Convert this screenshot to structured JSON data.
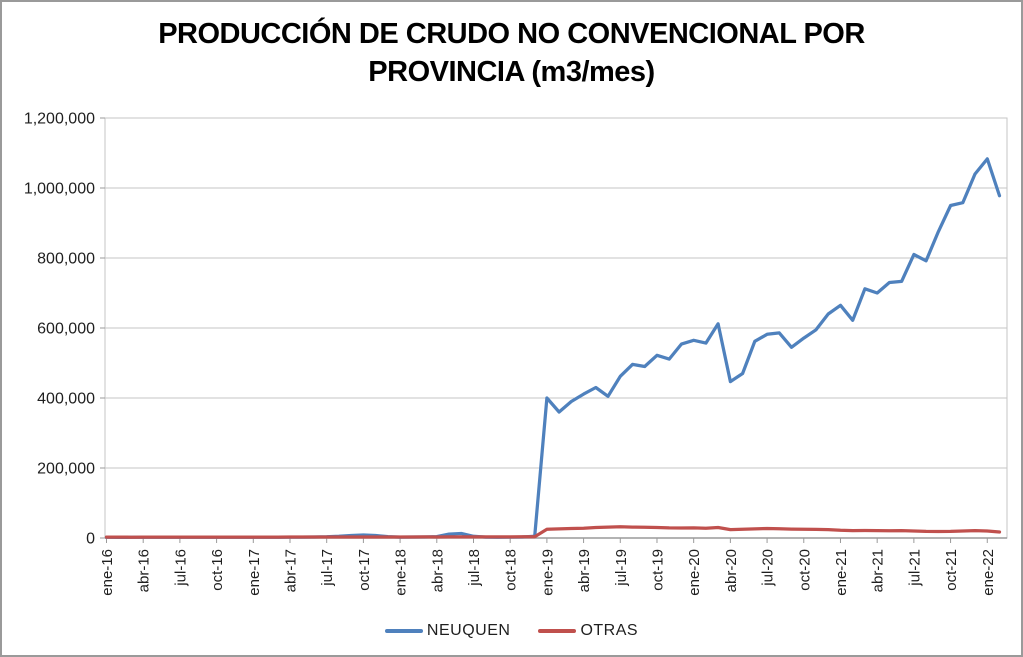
{
  "chart": {
    "title_line1": "PRODUCCIÓN DE CRUDO NO CONVENCIONAL POR",
    "title_line2": "PROVINCIA (m3/mes)",
    "legend": {
      "items": [
        {
          "label": "NEUQUEN",
          "color": "#4F81BD"
        },
        {
          "label": "OTRAS",
          "color": "#C0504D"
        }
      ]
    },
    "colors": {
      "series_neuquen": "#4F81BD",
      "series_otras": "#C0504D",
      "grid": "#C6C6C6",
      "axis": "#9A9A9A",
      "text": "#1F1F1F",
      "border": "#9A9A9A",
      "background": "#FFFFFF"
    }
  },
  "chart_data": {
    "type": "line",
    "title": "PRODUCCIÓN DE CRUDO NO CONVENCIONAL POR PROVINCIA (m3/mes)",
    "xlabel": "",
    "ylabel": "",
    "ylim": [
      0,
      1200000
    ],
    "ytick_step": 200000,
    "y_tick_labels": [
      "0",
      "200,000",
      "400,000",
      "600,000",
      "800,000",
      "1,000,000",
      "1,200,000"
    ],
    "x_tick_every": 3,
    "x_tick_labels": [
      "ene-16",
      "abr-16",
      "jul-16",
      "oct-16",
      "ene-17",
      "abr-17",
      "jul-17",
      "oct-17",
      "ene-18",
      "abr-18",
      "jul-18",
      "oct-18",
      "ene-19",
      "abr-19",
      "jul-19",
      "oct-19",
      "ene-20",
      "abr-20",
      "jul-20",
      "oct-20",
      "ene-21",
      "abr-21",
      "jul-21",
      "oct-21",
      "ene-22"
    ],
    "grid": true,
    "legend_position": "bottom",
    "x": [
      "ene-16",
      "feb-16",
      "mar-16",
      "abr-16",
      "may-16",
      "jun-16",
      "jul-16",
      "ago-16",
      "sep-16",
      "oct-16",
      "nov-16",
      "dic-16",
      "ene-17",
      "feb-17",
      "mar-17",
      "abr-17",
      "may-17",
      "jun-17",
      "jul-17",
      "ago-17",
      "sep-17",
      "oct-17",
      "nov-17",
      "dic-17",
      "ene-18",
      "feb-18",
      "mar-18",
      "abr-18",
      "may-18",
      "jun-18",
      "jul-18",
      "ago-18",
      "sep-18",
      "oct-18",
      "nov-18",
      "dic-18",
      "ene-19",
      "feb-19",
      "mar-19",
      "abr-19",
      "may-19",
      "jun-19",
      "jul-19",
      "ago-19",
      "sep-19",
      "oct-19",
      "nov-19",
      "dic-19",
      "ene-20",
      "feb-20",
      "mar-20",
      "abr-20",
      "may-20",
      "jun-20",
      "jul-20",
      "ago-20",
      "sep-20",
      "oct-20",
      "nov-20",
      "dic-20",
      "ene-21",
      "feb-21",
      "mar-21",
      "abr-21",
      "may-21",
      "jun-21",
      "jul-21",
      "ago-21",
      "sep-21",
      "oct-21",
      "nov-21",
      "dic-21",
      "ene-22",
      "feb-22"
    ],
    "series": [
      {
        "name": "NEUQUEN",
        "color": "#4F81BD",
        "values": [
          2000,
          1800,
          2000,
          1900,
          2000,
          2100,
          2000,
          2200,
          2100,
          2300,
          2200,
          2100,
          2200,
          2000,
          2300,
          2500,
          2600,
          2800,
          3500,
          5000,
          7000,
          8500,
          7000,
          4000,
          2500,
          2800,
          3000,
          4000,
          11000,
          13000,
          5000,
          2500,
          2200,
          2500,
          3000,
          5000,
          400000,
          360000,
          390000,
          411000,
          430000,
          405000,
          462000,
          496000,
          490000,
          522000,
          511000,
          554000,
          565000,
          557000,
          612000,
          447000,
          470000,
          562000,
          582000,
          586000,
          545000,
          571000,
          595000,
          640000,
          665000,
          622000,
          712000,
          700000,
          730000,
          733000,
          810000,
          792000,
          875000,
          950000,
          958000,
          1040000,
          1083000,
          978000
        ]
      },
      {
        "name": "OTRAS",
        "color": "#C0504D",
        "values": [
          2500,
          2500,
          2400,
          2500,
          2600,
          2500,
          2500,
          2600,
          2500,
          2600,
          2700,
          2600,
          2700,
          2600,
          2700,
          2800,
          2800,
          2900,
          2800,
          2900,
          3000,
          2900,
          3000,
          3000,
          3000,
          3000,
          3100,
          3000,
          3100,
          3200,
          3100,
          3200,
          3100,
          3200,
          3300,
          3400,
          25000,
          26000,
          27000,
          28000,
          30000,
          31000,
          32000,
          31000,
          30500,
          30000,
          29000,
          28500,
          29000,
          28000,
          30000,
          24000,
          25000,
          26000,
          27000,
          26500,
          25500,
          25000,
          24500,
          24000,
          22000,
          21000,
          21500,
          21000,
          20500,
          21000,
          20000,
          19000,
          18500,
          19000,
          20000,
          21000,
          20000,
          17000
        ]
      }
    ]
  }
}
